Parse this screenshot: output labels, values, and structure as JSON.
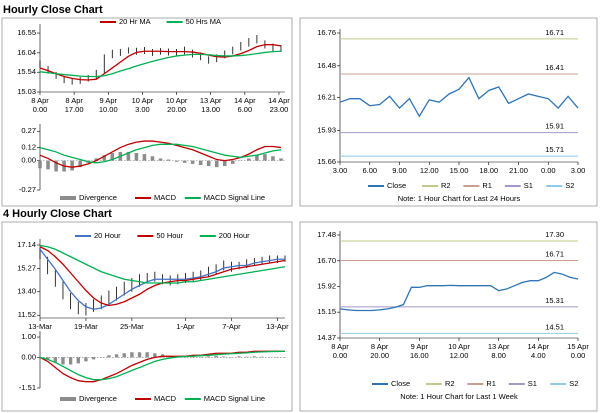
{
  "sections": [
    {
      "title": "Hourly Close Chart"
    },
    {
      "title": "4 Hourly Close Chart"
    }
  ],
  "chart_data": [
    {
      "type": "ohlc",
      "x": [
        0,
        4,
        8,
        12,
        16,
        20,
        24,
        28,
        32,
        36,
        40,
        44,
        48,
        52,
        56,
        60,
        64,
        68,
        72,
        76,
        80,
        84,
        88,
        92,
        96,
        100,
        104,
        108,
        112,
        116,
        120
      ],
      "xlim": [
        0,
        122
      ],
      "xticks": [
        {
          "value": 0,
          "label": [
            "8 Apr",
            "0.00"
          ]
        },
        {
          "value": 17,
          "label": [
            "8 Apr",
            "17.00"
          ]
        },
        {
          "value": 34,
          "label": [
            "9 Apr",
            "10.00"
          ]
        },
        {
          "value": 51,
          "label": [
            "10 Apr",
            "3.00"
          ]
        },
        {
          "value": 68,
          "label": [
            "10 Apr",
            "20.00"
          ]
        },
        {
          "value": 85,
          "label": [
            "13 Apr",
            "13.00"
          ]
        },
        {
          "value": 102,
          "label": [
            "14 Apr",
            "6.00"
          ]
        },
        {
          "value": 119,
          "label": [
            "14 Apr",
            "23.00"
          ]
        }
      ],
      "ylim": [
        15.03,
        16.68
      ],
      "yticks": [
        15.03,
        15.54,
        16.04,
        16.55
      ],
      "bars": {
        "color": "#000000",
        "high": [
          15.84,
          15.7,
          15.55,
          15.44,
          15.38,
          15.42,
          15.47,
          15.6,
          16.0,
          16.12,
          16.14,
          16.18,
          16.17,
          16.19,
          16.14,
          16.16,
          16.15,
          16.14,
          16.2,
          16.12,
          16.05,
          15.95,
          16.0,
          16.1,
          16.2,
          16.32,
          16.42,
          16.5,
          16.36,
          16.28,
          16.24
        ],
        "low": [
          15.66,
          15.5,
          15.37,
          15.26,
          15.22,
          15.24,
          15.3,
          15.38,
          15.5,
          15.9,
          15.96,
          16.02,
          15.99,
          16.01,
          15.96,
          15.99,
          15.97,
          15.96,
          16.0,
          15.92,
          15.85,
          15.76,
          15.8,
          15.9,
          16.0,
          16.1,
          16.2,
          16.28,
          16.15,
          16.08,
          16.06
        ]
      },
      "series": [
        {
          "name": "20 Hr MA",
          "color": "#c00000",
          "values": [
            15.65,
            15.58,
            15.5,
            15.43,
            15.38,
            15.35,
            15.34,
            15.36,
            15.5,
            15.65,
            15.8,
            15.95,
            16.05,
            16.08,
            16.08,
            16.08,
            16.07,
            16.07,
            16.07,
            16.06,
            16.03,
            15.98,
            15.94,
            15.93,
            15.96,
            16.02,
            16.1,
            16.2,
            16.25,
            16.25,
            16.22
          ]
        },
        {
          "name": "50 Hrs MA",
          "color": "#00b050",
          "values": [
            15.55,
            15.53,
            15.5,
            15.48,
            15.46,
            15.44,
            15.43,
            15.43,
            15.45,
            15.5,
            15.57,
            15.63,
            15.7,
            15.76,
            15.82,
            15.87,
            15.92,
            15.96,
            15.98,
            16.0,
            16.0,
            15.99,
            15.97,
            15.96,
            15.96,
            15.97,
            15.99,
            16.02,
            16.05,
            16.07,
            16.08
          ]
        }
      ]
    },
    {
      "type": "combo",
      "x": [
        0,
        4,
        8,
        12,
        16,
        20,
        24,
        28,
        32,
        36,
        40,
        44,
        48,
        52,
        56,
        60,
        64,
        68,
        72,
        76,
        80,
        84,
        88,
        92,
        96,
        100,
        104,
        108,
        112,
        116,
        120
      ],
      "xlim": [
        0,
        122
      ],
      "ylim": [
        -0.27,
        0.3
      ],
      "yticks": [
        -0.27,
        {
          "value": 0,
          "label": "0.00"
        },
        0.12,
        0.27
      ],
      "series": [
        {
          "name": "Divergence",
          "kind": "bar",
          "color": "#8c8c8c",
          "values": [
            -0.07,
            -0.08,
            -0.1,
            -0.1,
            -0.09,
            -0.06,
            -0.02,
            0.02,
            0.05,
            0.07,
            0.08,
            0.08,
            0.07,
            0.06,
            0.04,
            0.02,
            0.01,
            -0.01,
            -0.02,
            -0.03,
            -0.04,
            -0.05,
            -0.06,
            -0.05,
            -0.03,
            0,
            0.02,
            0.05,
            0.06,
            0.04,
            0.02
          ]
        },
        {
          "name": "MACD",
          "kind": "line",
          "color": "#c00000",
          "values": [
            0.05,
            0.02,
            -0.02,
            -0.05,
            -0.06,
            -0.05,
            -0.03,
            0,
            0.04,
            0.08,
            0.12,
            0.15,
            0.17,
            0.18,
            0.18,
            0.17,
            0.16,
            0.14,
            0.12,
            0.1,
            0.07,
            0.04,
            0.01,
            0,
            0.01,
            0.03,
            0.06,
            0.1,
            0.13,
            0.13,
            0.12
          ]
        },
        {
          "name": "MACD Signal Line",
          "kind": "line",
          "color": "#00b050",
          "values": [
            0.12,
            0.1,
            0.08,
            0.05,
            0.03,
            0.01,
            -0.01,
            -0.02,
            -0.01,
            0.01,
            0.04,
            0.07,
            0.1,
            0.12,
            0.14,
            0.15,
            0.15,
            0.15,
            0.14,
            0.13,
            0.11,
            0.09,
            0.07,
            0.05,
            0.04,
            0.03,
            0.04,
            0.05,
            0.07,
            0.09,
            0.1
          ]
        }
      ]
    },
    {
      "type": "line",
      "x": [
        0,
        1,
        2,
        3,
        4,
        5,
        6,
        7,
        8,
        9,
        10,
        11,
        12,
        13,
        14,
        15,
        16,
        17,
        18,
        19,
        20,
        21,
        22,
        23,
        24
      ],
      "xlim": [
        0,
        24
      ],
      "xticks": [
        {
          "value": 0,
          "label": "3.00"
        },
        {
          "value": 3,
          "label": "6.00"
        },
        {
          "value": 6,
          "label": "9.00"
        },
        {
          "value": 9,
          "label": "12.00"
        },
        {
          "value": 12,
          "label": "15.00"
        },
        {
          "value": 15,
          "label": "18.00"
        },
        {
          "value": 18,
          "label": "21.00"
        },
        {
          "value": 21,
          "label": "0.00"
        },
        {
          "value": 24,
          "label": "3.00"
        }
      ],
      "ylim": [
        15.66,
        16.76
      ],
      "yticks": [
        15.66,
        15.93,
        16.21,
        16.48,
        16.76
      ],
      "series": [
        {
          "name": "Close",
          "color": "#2e75b6",
          "values": [
            16.17,
            16.2,
            16.2,
            16.14,
            16.15,
            16.22,
            16.12,
            16.2,
            16.05,
            16.19,
            16.17,
            16.24,
            16.28,
            16.38,
            16.2,
            16.27,
            16.3,
            16.16,
            16.2,
            16.24,
            16.22,
            16.2,
            16.12,
            16.22,
            16.12
          ]
        }
      ],
      "levels": [
        {
          "name": "R2",
          "color": "#c3c98a",
          "value": 16.71
        },
        {
          "name": "R1",
          "color": "#c9a08f",
          "value": 16.41
        },
        {
          "name": "S1",
          "color": "#a597c9",
          "value": 15.91
        },
        {
          "name": "S2",
          "color": "#8fcbe6",
          "value": 15.71
        }
      ],
      "note": "Note: 1 Hour Chart for Last 24 Hours"
    },
    {
      "type": "ohlc",
      "x": [
        0,
        1,
        2,
        3,
        4,
        5,
        6,
        7,
        8,
        9,
        10,
        11,
        12,
        13,
        14,
        15,
        16,
        17,
        18,
        19,
        20,
        21,
        22,
        23,
        24,
        25,
        26,
        27,
        28,
        29,
        30,
        31,
        32
      ],
      "xlim": [
        0,
        32
      ],
      "xticks": [
        {
          "value": 0,
          "label": "13-Mar"
        },
        {
          "value": 6,
          "label": "19-Mar"
        },
        {
          "value": 12,
          "label": "25-Mar"
        },
        {
          "value": 19,
          "label": "1-Apr"
        },
        {
          "value": 25,
          "label": "7-Apr"
        },
        {
          "value": 31,
          "label": "13-Apr"
        }
      ],
      "ylim": [
        11.3,
        17.3
      ],
      "yticks": [
        11.52,
        {
          "value": 13.4,
          "label": "13.40"
        },
        15.27,
        17.14
      ],
      "bars": {
        "color": "#000000",
        "high": [
          16.9,
          16.2,
          15.1,
          14.2,
          13.3,
          12.6,
          12.5,
          12.8,
          13.1,
          13.5,
          13.8,
          14.2,
          14.5,
          14.8,
          14.9,
          15.0,
          14.8,
          14.7,
          14.8,
          14.9,
          15.0,
          15.1,
          15.4,
          15.6,
          15.9,
          15.8,
          15.8,
          16.0,
          16.1,
          16.2,
          16.3,
          16.3,
          16.3
        ],
        "low": [
          16.0,
          14.8,
          13.8,
          12.8,
          12.0,
          11.6,
          11.5,
          11.8,
          12.0,
          12.4,
          12.7,
          13.1,
          13.4,
          13.8,
          14.1,
          14.2,
          14.0,
          13.9,
          14.0,
          14.1,
          14.2,
          14.3,
          14.6,
          14.8,
          15.1,
          15.0,
          15.2,
          15.3,
          15.5,
          15.6,
          15.7,
          15.7,
          15.8
        ]
      },
      "series": [
        {
          "name": "20 Hour",
          "color": "#4472c4",
          "values": [
            16.8,
            16.0,
            15.2,
            14.3,
            13.4,
            12.7,
            12.2,
            12.0,
            12.1,
            12.4,
            12.8,
            13.2,
            13.6,
            13.9,
            14.2,
            14.4,
            14.4,
            14.4,
            14.4,
            14.4,
            14.5,
            14.6,
            14.8,
            15.0,
            15.3,
            15.4,
            15.5,
            15.5,
            15.7,
            15.8,
            15.9,
            16.0,
            16.0
          ]
        },
        {
          "name": "50 Hour",
          "color": "#c00000",
          "values": [
            17.0,
            16.7,
            16.2,
            15.6,
            14.9,
            14.2,
            13.5,
            12.9,
            12.5,
            12.3,
            12.4,
            12.6,
            12.9,
            13.2,
            13.6,
            13.9,
            14.1,
            14.2,
            14.3,
            14.3,
            14.4,
            14.5,
            14.6,
            14.8,
            15.0,
            15.2,
            15.3,
            15.4,
            15.5,
            15.6,
            15.7,
            15.8,
            15.9
          ]
        },
        {
          "name": "200 Hour",
          "color": "#00b050",
          "values": [
            17.1,
            17.0,
            16.8,
            16.5,
            16.2,
            15.9,
            15.6,
            15.3,
            15.0,
            14.8,
            14.6,
            14.4,
            14.3,
            14.2,
            14.1,
            14.1,
            14.1,
            14.1,
            14.1,
            14.2,
            14.2,
            14.3,
            14.4,
            14.5,
            14.6,
            14.7,
            14.8,
            14.9,
            15.0,
            15.1,
            15.2,
            15.3,
            15.4
          ]
        }
      ]
    },
    {
      "type": "combo",
      "x": [
        0,
        1,
        2,
        3,
        4,
        5,
        6,
        7,
        8,
        9,
        10,
        11,
        12,
        13,
        14,
        15,
        16,
        17,
        18,
        19,
        20,
        21,
        22,
        23,
        24,
        25,
        26,
        27,
        28,
        29,
        30,
        31,
        32
      ],
      "xlim": [
        0,
        32
      ],
      "ylim": [
        -1.51,
        1.1
      ],
      "yticks": [
        -1.51,
        {
          "value": 0,
          "label": "0.00"
        },
        {
          "value": 1,
          "label": "1.00"
        }
      ],
      "series": [
        {
          "name": "Divergence",
          "kind": "bar",
          "color": "#8c8c8c",
          "values": [
            0,
            -0.1,
            -0.25,
            -0.35,
            -0.35,
            -0.3,
            -0.2,
            -0.1,
            0,
            0.1,
            0.15,
            0.2,
            0.25,
            0.25,
            0.25,
            0.2,
            0.15,
            0.08,
            0.03,
            0.01,
            0.04,
            0.02,
            0.05,
            0.07,
            0.04,
            0.02,
            0.05,
            0.03,
            0.05,
            0.03,
            0.02,
            0.01,
            0
          ]
        },
        {
          "name": "MACD",
          "kind": "line",
          "color": "#c00000",
          "values": [
            0,
            -0.2,
            -0.5,
            -0.8,
            -1.0,
            -1.15,
            -1.2,
            -1.2,
            -1.1,
            -0.95,
            -0.8,
            -0.6,
            -0.4,
            -0.25,
            -0.1,
            0,
            0.05,
            0.05,
            0.05,
            0.05,
            0.1,
            0.1,
            0.15,
            0.2,
            0.2,
            0.2,
            0.25,
            0.25,
            0.3,
            0.3,
            0.3,
            0.3,
            0.3
          ]
        },
        {
          "name": "MACD Signal Line",
          "kind": "line",
          "color": "#00b050",
          "values": [
            0,
            -0.1,
            -0.25,
            -0.45,
            -0.65,
            -0.85,
            -1.0,
            -1.1,
            -1.1,
            -1.05,
            -0.95,
            -0.8,
            -0.65,
            -0.5,
            -0.35,
            -0.2,
            -0.1,
            -0.03,
            0.02,
            0.04,
            0.06,
            0.08,
            0.1,
            0.13,
            0.16,
            0.18,
            0.2,
            0.22,
            0.25,
            0.27,
            0.28,
            0.29,
            0.3
          ]
        }
      ]
    },
    {
      "type": "line",
      "x": [
        0,
        4,
        8,
        12,
        16,
        20,
        24,
        28,
        32,
        36,
        40,
        44,
        48,
        52,
        56,
        60,
        64,
        68,
        72,
        76,
        80,
        84,
        88,
        92,
        96,
        100,
        104,
        108,
        112,
        116,
        120
      ],
      "xlim": [
        0,
        120
      ],
      "xticks": [
        {
          "value": 0,
          "label": [
            "8 Apr",
            "0.00"
          ]
        },
        {
          "value": 20,
          "label": [
            "8 Apr",
            "20.00"
          ]
        },
        {
          "value": 40,
          "label": [
            "9 Apr",
            "16.00"
          ]
        },
        {
          "value": 60,
          "label": [
            "10 Apr",
            "12.00"
          ]
        },
        {
          "value": 80,
          "label": [
            "13 Apr",
            "8.00"
          ]
        },
        {
          "value": 100,
          "label": [
            "14 Apr",
            "4.00"
          ]
        },
        {
          "value": 120,
          "label": [
            "15 Apr",
            "0.00"
          ]
        }
      ],
      "ylim": [
        14.37,
        17.48
      ],
      "yticks": [
        14.37,
        15.15,
        15.92,
        {
          "value": 16.7,
          "label": "16.70"
        },
        17.48
      ],
      "series": [
        {
          "name": "Close",
          "color": "#2e75b6",
          "values": [
            15.25,
            15.22,
            15.2,
            15.2,
            15.2,
            15.22,
            15.25,
            15.3,
            15.38,
            15.9,
            15.9,
            15.95,
            15.95,
            15.95,
            15.96,
            15.95,
            15.95,
            15.95,
            15.95,
            15.95,
            15.8,
            15.85,
            15.95,
            16.05,
            16.1,
            16.1,
            16.2,
            16.35,
            16.3,
            16.2,
            16.15
          ]
        }
      ],
      "levels": [
        {
          "name": "R2",
          "color": "#c3c98a",
          "value": 17.3,
          "value_label": "17.30"
        },
        {
          "name": "R1",
          "color": "#c9a08f",
          "value": 16.71
        },
        {
          "name": "S1",
          "color": "#a597c9",
          "value": 15.31
        },
        {
          "name": "S2",
          "color": "#8fcbe6",
          "value": 14.51
        }
      ],
      "note": "Note: 1 Hour Chart for Last 1 Week"
    }
  ]
}
